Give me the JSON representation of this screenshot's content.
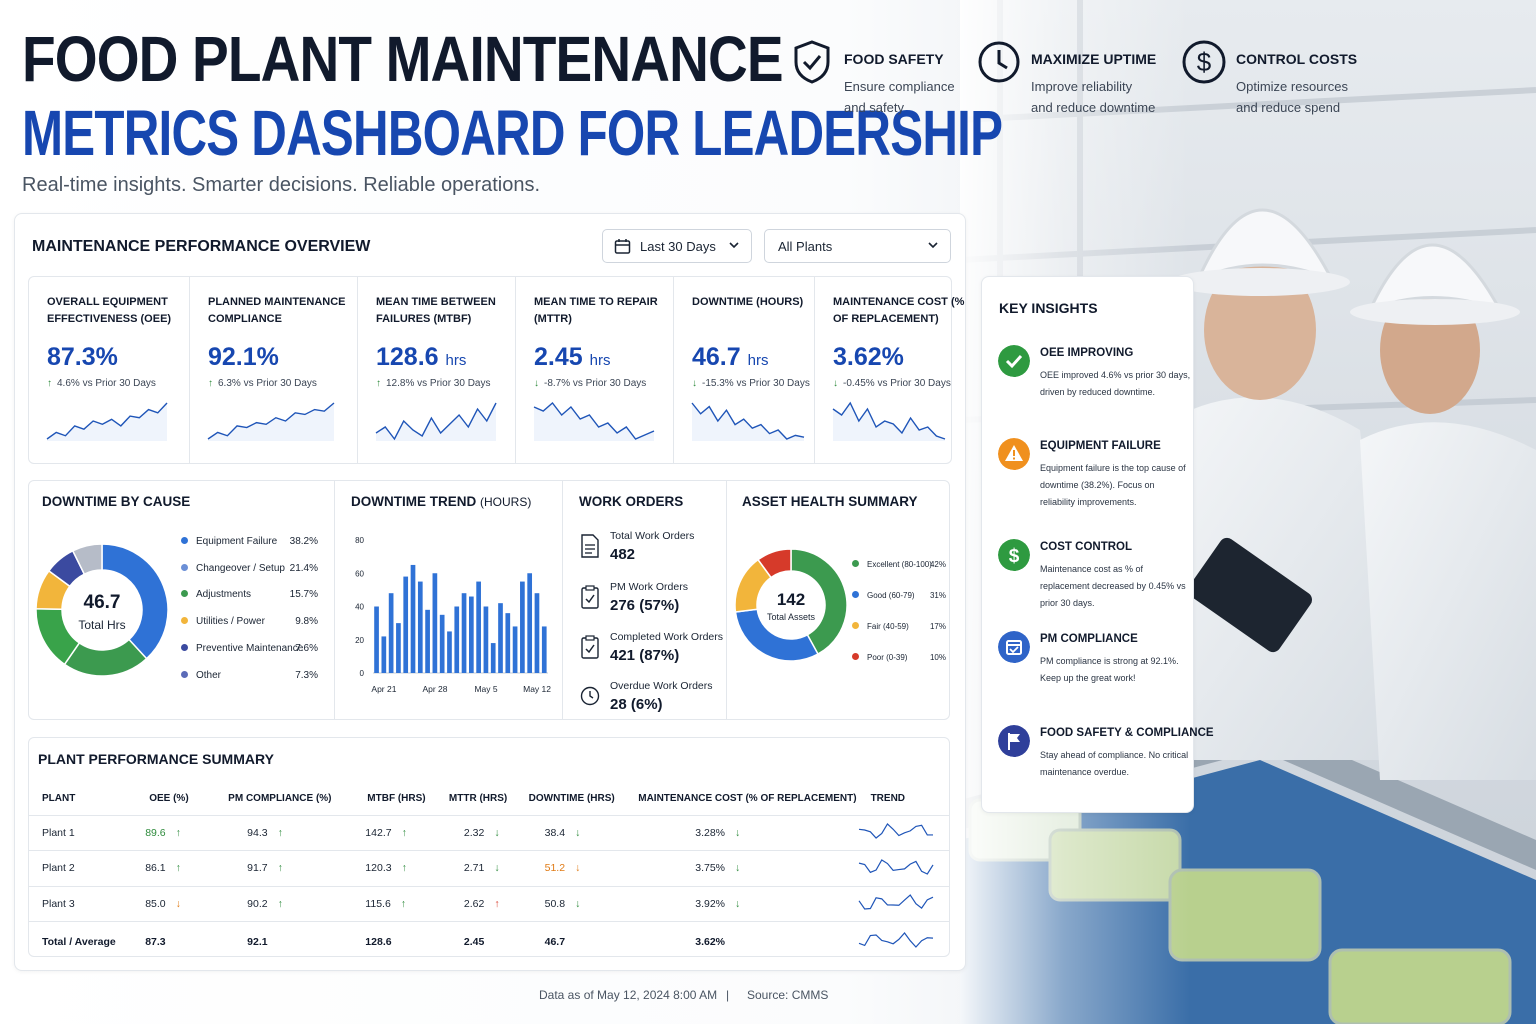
{
  "header": {
    "title_line1": "FOOD PLANT MAINTENANCE",
    "title_line2": "METRICS DASHBOARD FOR LEADERSHIP",
    "subtitle": "Real-time insights. Smarter decisions. Reliable operations."
  },
  "pillars": [
    {
      "icon": "shield-check-icon",
      "title": "FOOD SAFETY",
      "line1": "Ensure compliance",
      "line2": "and safety"
    },
    {
      "icon": "clock-icon",
      "title": "MAXIMIZE UPTIME",
      "line1": "Improve reliability",
      "line2": "and reduce downtime"
    },
    {
      "icon": "dollar-icon",
      "title": "CONTROL COSTS",
      "line1": "Optimize resources",
      "line2": "and reduce spend"
    }
  ],
  "overview": {
    "title": "MAINTENANCE PERFORMANCE OVERVIEW",
    "date_filter": "Last 30 Days",
    "plant_filter": "All Plants"
  },
  "kpis": [
    {
      "title": "OVERALL EQUIPMENT EFFECTIVENESS (OEE)",
      "value": "87.3%",
      "unit": "",
      "arrow": "↑",
      "change": "4.6% vs Prior 30 Days"
    },
    {
      "title": "PLANNED MAINTENANCE COMPLIANCE",
      "value": "92.1%",
      "unit": "",
      "arrow": "↑",
      "change": "6.3% vs Prior 30 Days"
    },
    {
      "title": "MEAN TIME BETWEEN FAILURES (MTBF)",
      "value": "128.6",
      "unit": "hrs",
      "arrow": "↑",
      "change": "12.8% vs Prior 30 Days"
    },
    {
      "title": "MEAN TIME TO REPAIR (MTTR)",
      "value": "2.45",
      "unit": "hrs",
      "arrow": "↓",
      "change": "-8.7% vs Prior 30 Days"
    },
    {
      "title": "DOWNTIME (HOURS)",
      "value": "46.7",
      "unit": "hrs",
      "arrow": "↓",
      "change": "-15.3% vs Prior 30 Days"
    },
    {
      "title": "MAINTENANCE COST (% OF REPLACEMENT)",
      "value": "3.62%",
      "unit": "",
      "arrow": "↓",
      "change": "-0.45% vs Prior 30 Days"
    }
  ],
  "downtime_by_cause": {
    "title": "DOWNTIME BY CAUSE",
    "center_value": "46.7",
    "center_label": "Total Hrs"
  },
  "downtime_trend": {
    "title": "DOWNTIME TREND",
    "title_unit": "(HOURS)"
  },
  "work_orders": {
    "title": "WORK ORDERS",
    "items": [
      {
        "icon": "document-icon",
        "label": "Total Work Orders",
        "value": "482"
      },
      {
        "icon": "clipboard-check-icon",
        "label": "PM Work Orders",
        "value": "276  (57%)"
      },
      {
        "icon": "clipboard-done-icon",
        "label": "Completed Work Orders",
        "value": "421  (87%)"
      },
      {
        "icon": "clock-icon",
        "label": "Overdue Work Orders",
        "value": "28  (6%)"
      }
    ]
  },
  "asset_health": {
    "title": "ASSET HEALTH SUMMARY",
    "center_value": "142",
    "center_label": "Total Assets"
  },
  "chart_data": [
    {
      "type": "pie",
      "title": "DOWNTIME BY CAUSE",
      "categories": [
        "Equipment Failure",
        "Changeover / Setup",
        "Adjustments",
        "Utilities / Power",
        "Preventive Maintenance",
        "Other"
      ],
      "values": [
        38.2,
        21.4,
        15.7,
        9.8,
        7.6,
        7.3
      ],
      "labels": [
        "38.2%",
        "21.4%",
        "15.7%",
        "9.8%",
        "7.6%",
        "7.3%"
      ],
      "colors": [
        "#2f72d6",
        "#3c9a4f",
        "#39a34a",
        "#f2b53b",
        "#3b4aa0",
        "#b6bcc8"
      ],
      "legend_colors": [
        "#2f72d6",
        "#6b8fd6",
        "#3c9a4f",
        "#f2b53b",
        "#3b4aa0",
        "#5b6bb8"
      ]
    },
    {
      "type": "bar",
      "title": "DOWNTIME TREND (HOURS)",
      "x": [
        "Apr 20",
        "Apr 21",
        "Apr 22",
        "Apr 23",
        "Apr 24",
        "Apr 25",
        "Apr 26",
        "Apr 27",
        "Apr 28",
        "Apr 29",
        "Apr 30",
        "May 1",
        "May 2",
        "May 3",
        "May 4",
        "May 5",
        "May 6",
        "May 7",
        "May 8",
        "May 9",
        "May 10",
        "May 11",
        "May 12",
        "May 13"
      ],
      "values": [
        40,
        22,
        48,
        30,
        58,
        65,
        55,
        38,
        60,
        35,
        25,
        40,
        48,
        46,
        55,
        40,
        18,
        42,
        36,
        28,
        55,
        60,
        48,
        28
      ],
      "xticks": [
        "Apr 21",
        "Apr 28",
        "May 5",
        "May 12"
      ],
      "yticks": [
        0,
        20,
        40,
        60,
        80
      ],
      "ylim": [
        0,
        80
      ],
      "color": "#2f72d6"
    },
    {
      "type": "pie",
      "title": "ASSET HEALTH SUMMARY",
      "categories": [
        "Excellent (80-100)",
        "Good (60-79)",
        "Fair (40-59)",
        "Poor (0-39)"
      ],
      "values": [
        42,
        31,
        17,
        10
      ],
      "labels": [
        "42%",
        "31%",
        "17%",
        "10%"
      ],
      "colors": [
        "#3c9a4f",
        "#2f72d6",
        "#f2b53b",
        "#d63a2a"
      ]
    }
  ],
  "kpi_sparklines": [
    [
      22,
      26,
      24,
      30,
      28,
      33,
      31,
      34,
      30,
      36,
      35,
      40,
      38,
      44
    ],
    [
      20,
      24,
      22,
      28,
      27,
      30,
      29,
      33,
      31,
      36,
      35,
      38,
      37,
      42
    ],
    [
      30,
      32,
      28,
      34,
      31,
      29,
      35,
      30,
      33,
      36,
      32,
      38,
      34,
      40
    ],
    [
      40,
      38,
      42,
      36,
      40,
      34,
      36,
      30,
      32,
      27,
      30,
      24,
      26,
      28
    ],
    [
      42,
      36,
      40,
      32,
      38,
      30,
      33,
      28,
      30,
      25,
      27,
      22,
      24,
      23
    ],
    [
      36,
      34,
      38,
      32,
      36,
      30,
      32,
      31,
      28,
      33,
      29,
      30,
      27,
      26
    ]
  ],
  "plant_summary": {
    "title": "PLANT PERFORMANCE SUMMARY",
    "columns": [
      "PLANT",
      "OEE (%)",
      "PM COMPLIANCE (%)",
      "MTBF (HRS)",
      "MTTR (HRS)",
      "DOWNTIME (HRS)",
      "MAINTENANCE COST (% OF REPLACEMENT)",
      "TREND"
    ],
    "rows": [
      {
        "plant": "Plant 1",
        "oee": "89.6",
        "pm": "94.3",
        "mtbf": "142.7",
        "mttr": "2.32",
        "downtime": "38.4",
        "cost": "3.28%"
      },
      {
        "plant": "Plant 2",
        "oee": "86.1",
        "pm": "91.7",
        "mtbf": "120.3",
        "mttr": "2.71",
        "downtime": "51.2",
        "cost": "3.75%"
      },
      {
        "plant": "Plant 3",
        "oee": "85.0",
        "pm": "90.2",
        "mtbf": "115.6",
        "mttr": "2.62",
        "downtime": "50.8",
        "cost": "3.92%"
      }
    ],
    "total": {
      "plant": "Total / Average",
      "oee": "87.3",
      "pm": "92.1",
      "mtbf": "128.6",
      "mttr": "2.45",
      "downtime": "46.7",
      "cost": "3.62%"
    },
    "arrows": {
      "up": "↑",
      "down": "↓"
    }
  },
  "insights": {
    "title": "KEY INSIGHTS",
    "items": [
      {
        "icon": "check-circle-icon",
        "color": "#2e9a40",
        "title": "OEE IMPROVING",
        "body": "OEE improved 4.6% vs prior 30 days, driven by reduced downtime."
      },
      {
        "icon": "warning-icon",
        "color": "#f0901e",
        "title": "EQUIPMENT FAILURE",
        "body": "Equipment failure is the top cause of downtime (38.2%). Focus on reliability improvements."
      },
      {
        "icon": "dollar-icon",
        "color": "#2e9a40",
        "title": "COST CONTROL",
        "body": "Maintenance cost as % of replacement decreased by 0.45% vs prior 30 days."
      },
      {
        "icon": "calendar-check-icon",
        "color": "#2f64c8",
        "title": "PM COMPLIANCE",
        "body": "PM compliance is strong at 92.1%. Keep up the great work!"
      },
      {
        "icon": "flag-icon",
        "color": "#2f3f9a",
        "title": "FOOD SAFETY & COMPLIANCE",
        "body": "Stay ahead of compliance. No critical maintenance overdue."
      }
    ]
  },
  "footer": {
    "data_as_of": "Data as of May 12, 2024 8:00 AM",
    "separator": "|",
    "source": "Source: CMMS"
  }
}
